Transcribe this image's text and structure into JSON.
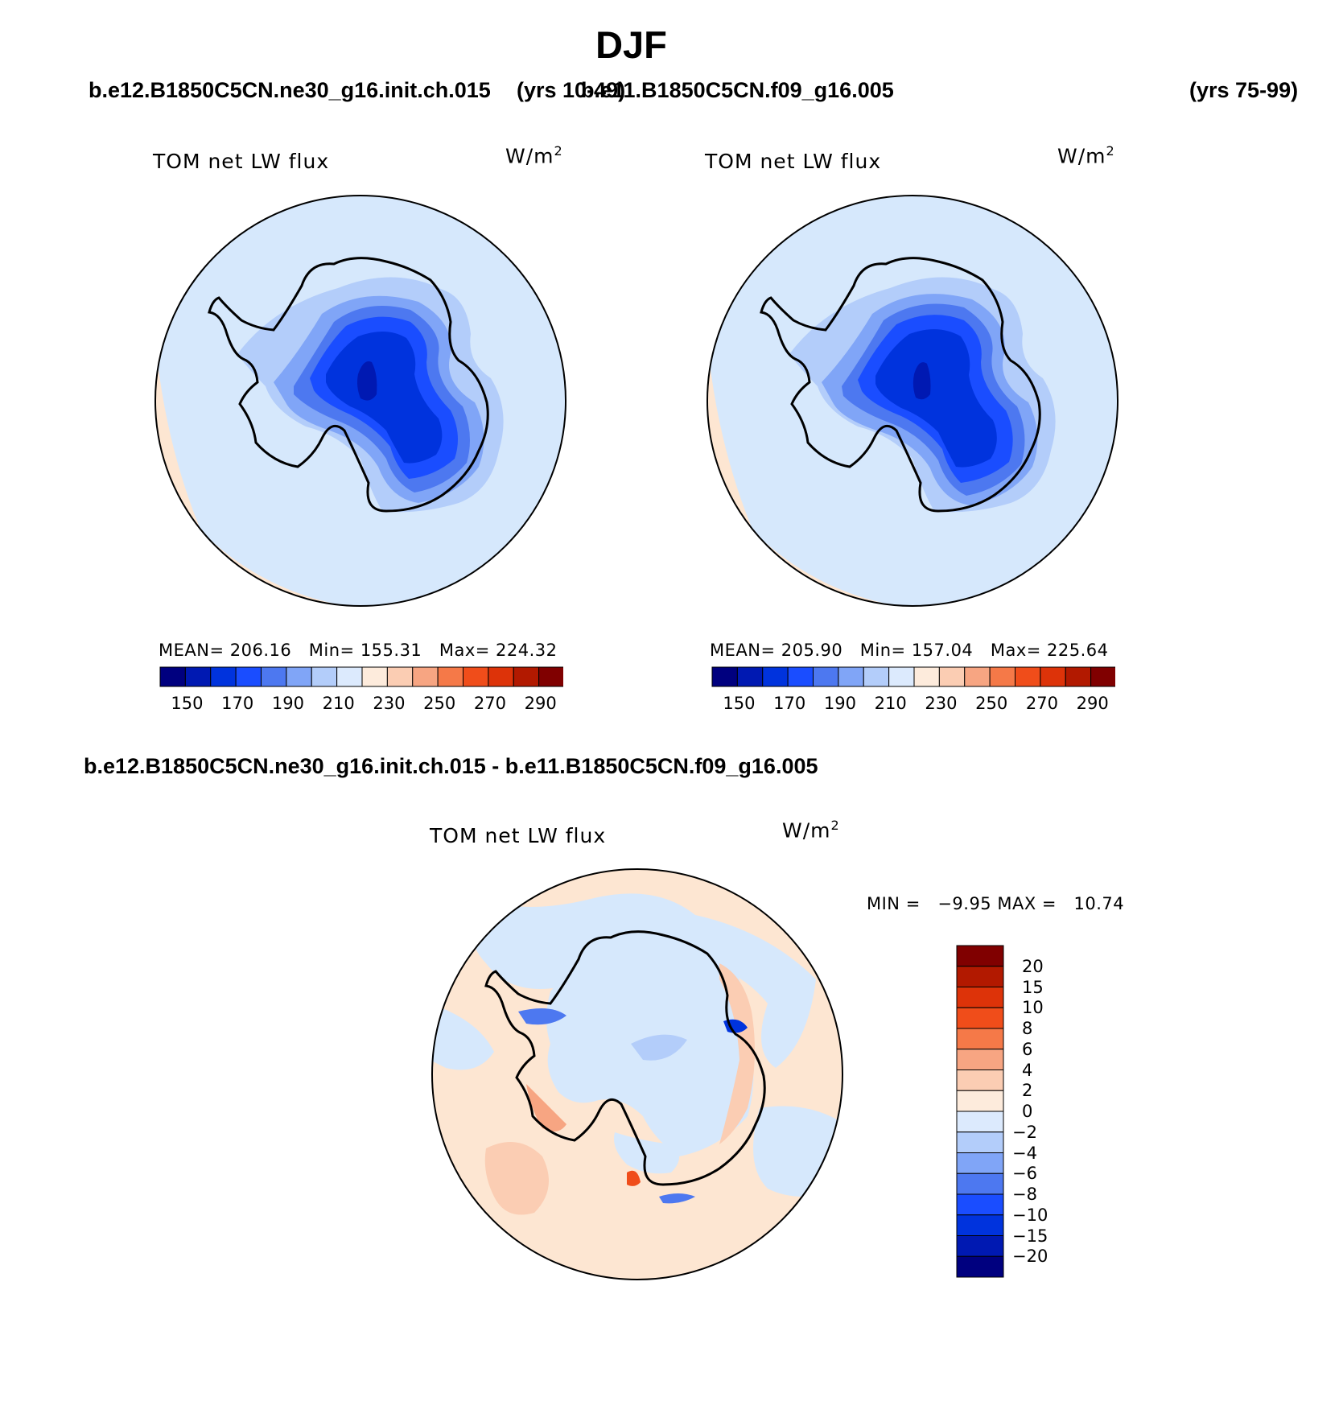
{
  "page": {
    "title": "DJF",
    "case_a": "b.e12.B1850C5CN.ne30_g16.init.ch.015",
    "case_a_years": "(yrs 10-49)",
    "case_b": "b.e11.B1850C5CN.f09_g16.005",
    "case_b_years": "(yrs 75-99)",
    "diff_title": "b.e12.B1850C5CN.ne30_g16.init.ch.015 - b.e11.B1850C5CN.f09_g16.005"
  },
  "panels": [
    {
      "variable": "TOM net LW flux",
      "units_base": "W/m",
      "units_exp": "2",
      "mean_label": "MEAN=",
      "mean": "206.16",
      "min_label": "Min=",
      "min": "155.31",
      "max_label": "Max=",
      "max": "224.32"
    },
    {
      "variable": "TOM net LW flux",
      "units_base": "W/m",
      "units_exp": "2",
      "mean_label": "MEAN=",
      "mean": "205.90",
      "min_label": "Min=",
      "min": "157.04",
      "max_label": "Max=",
      "max": "225.64"
    },
    {
      "variable": "TOM net LW flux",
      "units_base": "W/m",
      "units_exp": "2",
      "minmax_text": "MIN =   −9.95 MAX =   10.74"
    }
  ],
  "colorbar_abs": {
    "colors": [
      "#00007f",
      "#0019b2",
      "#0033dd",
      "#1a4dff",
      "#4d78f0",
      "#80a5f7",
      "#b3cdfa",
      "#dceafd",
      "#fdebdc",
      "#fbcdb3",
      "#f7a582",
      "#f57948",
      "#f04d1a",
      "#dd3309",
      "#b21900",
      "#800000"
    ],
    "ticks": [
      "150",
      "170",
      "190",
      "210",
      "230",
      "250",
      "270",
      "290"
    ]
  },
  "colorbar_diff": {
    "colors_top_to_bottom": [
      "#800000",
      "#b21900",
      "#dd3309",
      "#f04d1a",
      "#f57948",
      "#f7a582",
      "#fbcdb3",
      "#fdebdc",
      "#dceafd",
      "#b3cdfa",
      "#80a5f7",
      "#4d78f0",
      "#1a4dff",
      "#0033dd",
      "#0019b2",
      "#00007f"
    ],
    "ticks_top_to_bottom": [
      "20",
      "15",
      "10",
      "8",
      "6",
      "4",
      "2",
      "0",
      "−2",
      "−4",
      "−6",
      "−8",
      "−10",
      "−15",
      "−20"
    ]
  },
  "colors": {
    "map_background": "#d6e8fc",
    "map_warm": "#fde6d2",
    "ice_1": "#b3cdfa",
    "ice_2": "#80a5f7",
    "ice_3": "#4d78f0",
    "ice_4": "#1a4dff",
    "ice_5": "#0033dd",
    "ice_6": "#0019b2",
    "diff_pos_1": "#fbcdb3",
    "diff_pos_2": "#f7a582",
    "diff_pos_3": "#f04d1a",
    "diff_neg_1": "#b3cdfa",
    "diff_neg_2": "#4d78f0",
    "diff_neg_3": "#0033dd"
  }
}
